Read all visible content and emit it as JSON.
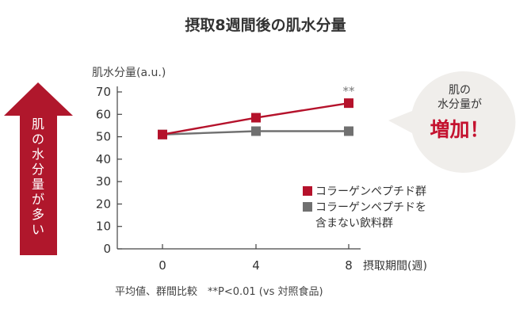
{
  "title": "摂取8週間後の肌水分量",
  "arrow_label": [
    "肌",
    "の",
    "水",
    "分",
    "量",
    "が",
    "多",
    "い"
  ],
  "callout": {
    "line1": "肌の",
    "line2": "水分量が",
    "emphasis": "増加！"
  },
  "footnote": "平均値、群間比較　**P<0.01 (vs 対照食品)",
  "significance": "**",
  "colors": {
    "collagen": "#b5122b",
    "control": "#707070",
    "axis": "#444444",
    "arrow": "#b0172c",
    "callout_bg": "#f0eeeb"
  },
  "chart_data": {
    "type": "line",
    "ylabel": "肌水分量(a.u.)",
    "xlabel": "摂取期間(週)",
    "x": [
      0,
      4,
      8
    ],
    "xticks": [
      "0",
      "4",
      "8"
    ],
    "ylim": [
      0,
      70
    ],
    "yticks": [
      "0",
      "10",
      "20",
      "30",
      "40",
      "50",
      "60",
      "70"
    ],
    "series": [
      {
        "name": "コラーゲンペプチド群",
        "values": [
          51,
          58.5,
          65
        ]
      },
      {
        "name": "コラーゲンペプチドを含まない飲料群",
        "values": [
          51,
          52.5,
          52.5
        ]
      }
    ],
    "legend": {
      "position": "right",
      "entries": [
        {
          "lines": [
            "コラーゲンペプチド群"
          ]
        },
        {
          "lines": [
            "コラーゲンペプチドを",
            "含まない飲料群"
          ]
        }
      ]
    }
  }
}
